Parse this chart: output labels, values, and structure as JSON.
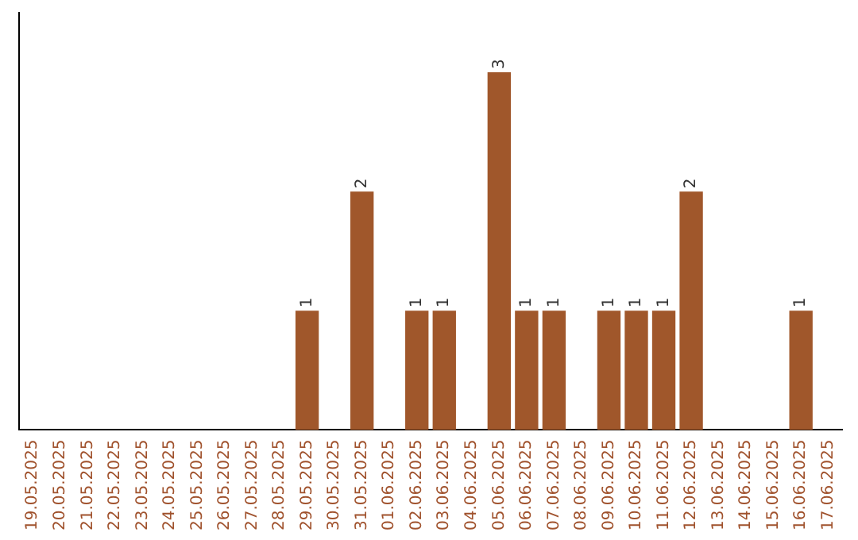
{
  "chart_data": {
    "type": "bar",
    "categories": [
      "19.05.2025",
      "20.05.2025",
      "21.05.2025",
      "22.05.2025",
      "23.05.2025",
      "24.05.2025",
      "25.05.2025",
      "26.05.2025",
      "27.05.2025",
      "28.05.2025",
      "29.05.2025",
      "30.05.2025",
      "31.05.2025",
      "01.06.2025",
      "02.06.2025",
      "03.06.2025",
      "04.06.2025",
      "05.06.2025",
      "06.06.2025",
      "07.06.2025",
      "08.06.2025",
      "09.06.2025",
      "10.06.2025",
      "11.06.2025",
      "12.06.2025",
      "13.06.2025",
      "14.06.2025",
      "15.06.2025",
      "16.06.2025",
      "17.06.2025"
    ],
    "values": [
      0,
      0,
      0,
      0,
      0,
      0,
      0,
      0,
      0,
      0,
      1,
      0,
      2,
      0,
      1,
      1,
      0,
      3,
      1,
      1,
      0,
      1,
      1,
      1,
      2,
      0,
      0,
      0,
      1,
      0
    ],
    "value_labels": [
      null,
      null,
      null,
      null,
      null,
      null,
      null,
      null,
      null,
      null,
      "1",
      null,
      "2",
      null,
      "1",
      "1",
      null,
      "3",
      "1",
      "1",
      null,
      "1",
      "1",
      "1",
      "2",
      null,
      null,
      null,
      "1",
      null
    ],
    "color": "#a0572b",
    "grid": false,
    "legend": false
  }
}
